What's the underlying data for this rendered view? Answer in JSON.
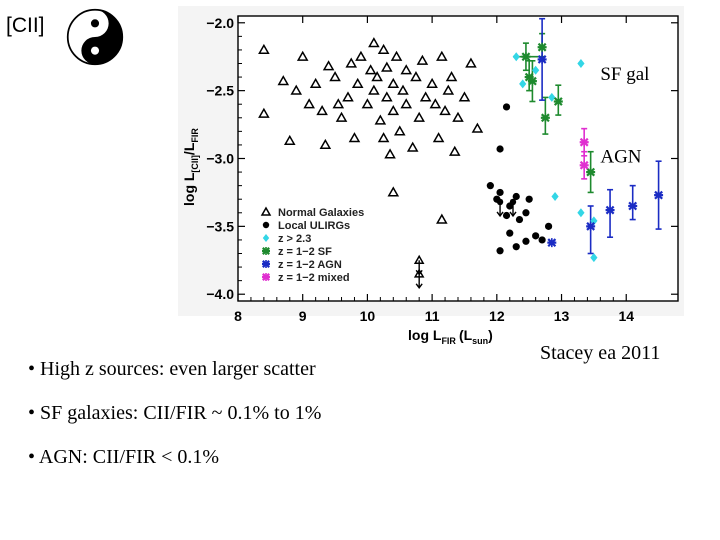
{
  "slide": {
    "title_tag": "[CII]",
    "bullets": [
      "• High z sources: even larger scatter",
      "• SF galaxies:  CII/FIR ~ 0.1% to 1%",
      "• AGN: CII/FIR < 0.1%"
    ],
    "credit": "Stacey ea 2011"
  },
  "chart_data": {
    "type": "scatter",
    "xlabel": "log L",
    "xlabel_sub": "FIR",
    "xlabel_paren": "(L",
    "xlabel_paren_sub": "sun",
    "xlabel_close": ")",
    "ylabel": "log L",
    "ylabel_sub": "[CII]",
    "ylabel_slash": "/L",
    "ylabel_sub2": "FIR",
    "xlim": [
      8,
      14.8
    ],
    "ylim": [
      -4.05,
      -1.95
    ],
    "xticks": [
      8,
      9,
      10,
      11,
      12,
      13,
      14
    ],
    "xtick_labels": [
      "8",
      "9",
      "10",
      "11",
      "12",
      "13",
      "14"
    ],
    "yticks": [
      -2.0,
      -2.5,
      -3.0,
      -3.5,
      -4.0
    ],
    "ytick_labels": [
      "−2.0",
      "−2.5",
      "−3.0",
      "−3.5",
      "−4.0"
    ],
    "annotations": [
      {
        "text": "SF gal",
        "x": 13.6,
        "y": -2.42
      },
      {
        "text": "AGN",
        "x": 13.6,
        "y": -3.03
      }
    ],
    "colors": {
      "normal": "#000000",
      "uligr": "#000000",
      "highz": "#33d6e6",
      "sf": "#1e8a2e",
      "agn": "#1b2cc4",
      "mixed": "#e02fd0"
    },
    "series": [
      {
        "name": "Normal Galaxies",
        "legend": "Normal Galaxies",
        "marker": "triangle",
        "points": [
          [
            8.4,
            -2.2
          ],
          [
            8.4,
            -2.67
          ],
          [
            8.7,
            -2.43
          ],
          [
            8.8,
            -2.87
          ],
          [
            8.9,
            -2.5
          ],
          [
            9.0,
            -2.25
          ],
          [
            9.1,
            -2.6
          ],
          [
            9.2,
            -2.45
          ],
          [
            9.3,
            -2.65
          ],
          [
            9.35,
            -2.9
          ],
          [
            9.4,
            -2.32
          ],
          [
            9.5,
            -2.4
          ],
          [
            9.55,
            -2.6
          ],
          [
            9.6,
            -2.7
          ],
          [
            9.7,
            -2.55
          ],
          [
            9.75,
            -2.3
          ],
          [
            9.8,
            -2.85
          ],
          [
            9.85,
            -2.45
          ],
          [
            9.9,
            -2.25
          ],
          [
            10.0,
            -2.6
          ],
          [
            10.05,
            -2.35
          ],
          [
            10.1,
            -2.5
          ],
          [
            10.1,
            -2.15
          ],
          [
            10.15,
            -2.4
          ],
          [
            10.2,
            -2.72
          ],
          [
            10.25,
            -2.2
          ],
          [
            10.25,
            -2.85
          ],
          [
            10.3,
            -2.55
          ],
          [
            10.3,
            -2.33
          ],
          [
            10.35,
            -2.97
          ],
          [
            10.4,
            -2.65
          ],
          [
            10.4,
            -2.45
          ],
          [
            10.45,
            -2.25
          ],
          [
            10.5,
            -2.8
          ],
          [
            10.55,
            -2.5
          ],
          [
            10.6,
            -2.6
          ],
          [
            10.6,
            -2.35
          ],
          [
            10.7,
            -2.92
          ],
          [
            10.75,
            -2.4
          ],
          [
            10.8,
            -2.7
          ],
          [
            10.85,
            -2.28
          ],
          [
            10.9,
            -2.55
          ],
          [
            11.0,
            -2.45
          ],
          [
            11.05,
            -2.6
          ],
          [
            11.1,
            -2.85
          ],
          [
            11.15,
            -2.25
          ],
          [
            11.2,
            -2.65
          ],
          [
            11.25,
            -2.5
          ],
          [
            11.3,
            -2.4
          ],
          [
            11.35,
            -2.95
          ],
          [
            11.4,
            -2.7
          ],
          [
            11.5,
            -2.55
          ],
          [
            11.6,
            -2.3
          ],
          [
            11.7,
            -2.78
          ],
          [
            10.4,
            -3.25
          ],
          [
            11.15,
            -3.45
          ]
        ]
      },
      {
        "name": "Local ULIRGs",
        "legend": "Local ULIRGs",
        "marker": "circle",
        "points": [
          [
            11.9,
            -3.2
          ],
          [
            12.0,
            -3.3
          ],
          [
            12.05,
            -3.25
          ],
          [
            12.2,
            -3.35
          ],
          [
            12.3,
            -3.28
          ],
          [
            12.15,
            -3.42
          ],
          [
            12.35,
            -3.45
          ],
          [
            12.5,
            -3.3
          ],
          [
            12.05,
            -2.93
          ],
          [
            12.15,
            -2.62
          ],
          [
            12.45,
            -3.4
          ],
          [
            12.3,
            -3.65
          ],
          [
            12.45,
            -3.61
          ],
          [
            12.6,
            -3.57
          ],
          [
            12.7,
            -3.6
          ],
          [
            12.2,
            -3.55
          ],
          [
            12.05,
            -3.68
          ],
          [
            12.8,
            -3.5
          ]
        ]
      },
      {
        "name": "z > 2.3",
        "legend": "z > 2.3",
        "marker": "diamond",
        "points": [
          [
            12.4,
            -2.45
          ],
          [
            12.3,
            -2.25
          ],
          [
            12.6,
            -2.35
          ],
          [
            12.9,
            -3.28
          ],
          [
            13.3,
            -3.4
          ],
          [
            13.3,
            -2.3
          ],
          [
            13.5,
            -3.73
          ],
          [
            12.85,
            -2.55
          ],
          [
            13.5,
            -3.46
          ]
        ]
      },
      {
        "name": "z = 1−2 SF",
        "legend": "z = 1−2 SF",
        "marker": "asterisk",
        "points": [
          [
            12.45,
            -2.25
          ],
          [
            12.5,
            -2.4
          ],
          [
            12.55,
            -2.43
          ],
          [
            12.75,
            -2.7
          ],
          [
            12.95,
            -2.58
          ],
          [
            13.45,
            -3.1
          ],
          [
            12.7,
            -2.18
          ]
        ],
        "yerr": [
          [
            0.1,
            0.1
          ],
          [
            0.1,
            0.12
          ],
          [
            0.15,
            0.15
          ],
          [
            0.12,
            0.15
          ],
          [
            0.1,
            0.12
          ],
          [
            0.15,
            0.15
          ],
          [
            0.1,
            0.1
          ]
        ],
        "xerr": [
          [
            0.2,
            0.3
          ],
          [
            0,
            0
          ],
          [
            0,
            0
          ],
          [
            0,
            0
          ],
          [
            0,
            0
          ],
          [
            0,
            0
          ],
          [
            0,
            0
          ]
        ]
      },
      {
        "name": "z = 1−2 AGN",
        "legend": "z = 1−2 AGN",
        "marker": "asterisk",
        "points": [
          [
            12.7,
            -2.27
          ],
          [
            13.45,
            -3.5
          ],
          [
            13.75,
            -3.38
          ],
          [
            14.1,
            -3.35
          ],
          [
            14.5,
            -3.27
          ],
          [
            12.85,
            -3.62
          ]
        ],
        "yerr": [
          [
            0.3,
            0.3
          ],
          [
            0.2,
            0.15
          ],
          [
            0.2,
            0.15
          ],
          [
            0.1,
            0.15
          ],
          [
            0.25,
            0.25
          ],
          [
            0,
            0
          ]
        ],
        "xerr": [
          [
            0,
            0
          ],
          [
            0,
            0
          ],
          [
            0,
            0
          ],
          [
            0,
            0
          ],
          [
            0,
            0
          ],
          [
            0,
            0
          ]
        ]
      },
      {
        "name": "z = 1−2 mixed",
        "legend": "z = 1−2 mixed",
        "marker": "asterisk",
        "points": [
          [
            13.35,
            -2.88
          ],
          [
            13.35,
            -3.05
          ]
        ],
        "yerr": [
          [
            0.1,
            0.1
          ],
          [
            0.1,
            0.1
          ]
        ],
        "xerr": [
          [
            0,
            0
          ],
          [
            0,
            0
          ]
        ]
      }
    ],
    "upper_limits": [
      {
        "series": "Normal Galaxies",
        "x": 10.8,
        "y": -3.75
      },
      {
        "series": "Normal Galaxies",
        "x": 10.8,
        "y": -3.85
      },
      {
        "series": "Local ULIRGs",
        "x": 12.05,
        "y": -3.32
      },
      {
        "series": "Local ULIRGs",
        "x": 12.25,
        "y": -3.32
      }
    ]
  }
}
